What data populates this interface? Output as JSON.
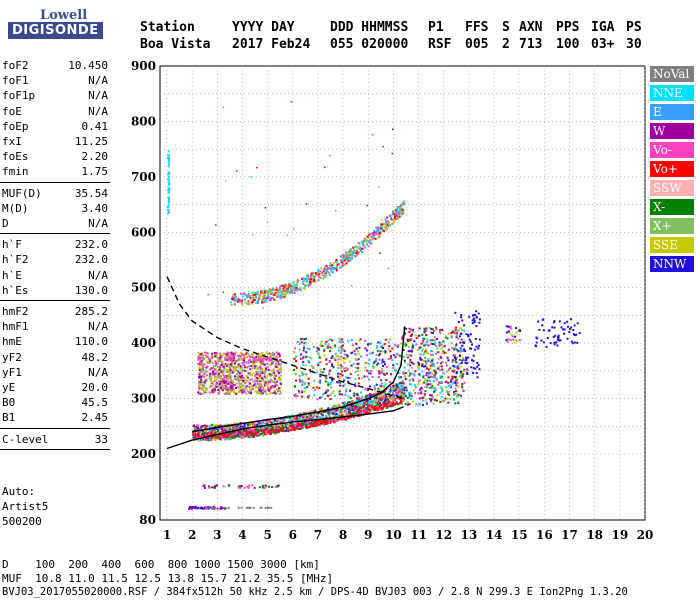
{
  "logo": {
    "top": "Lowell",
    "bottom": "DIGISONDE"
  },
  "header": {
    "labels": [
      "Station",
      "YYYY DAY",
      "DDD HHMMSS",
      "P1",
      "FFS",
      "S",
      "AXN",
      "PPS",
      "IGA",
      "PS"
    ],
    "values": [
      "Boa Vista",
      "2017 Feb24",
      "055 020000",
      "RSF",
      "005",
      "2",
      "713",
      "100",
      "03+",
      "30"
    ]
  },
  "params_group1": [
    {
      "label": "foF2",
      "value": "10.450"
    },
    {
      "label": "foF1",
      "value": "N/A"
    },
    {
      "label": "foF1p",
      "value": "N/A"
    },
    {
      "label": "foE",
      "value": "N/A"
    },
    {
      "label": "foEp",
      "value": "0.41"
    },
    {
      "label": "fxI",
      "value": "11.25"
    },
    {
      "label": "foEs",
      "value": "2.20"
    },
    {
      "label": "fmin",
      "value": "1.75"
    }
  ],
  "params_group2": [
    {
      "label": "MUF(D)",
      "value": "35.54"
    },
    {
      "label": "M(D)",
      "value": "3.40"
    },
    {
      "label": "D",
      "value": "N/A"
    }
  ],
  "params_group3": [
    {
      "label": "h`F",
      "value": "232.0"
    },
    {
      "label": "h`F2",
      "value": "232.0"
    },
    {
      "label": "h`E",
      "value": "N/A"
    },
    {
      "label": "h`Es",
      "value": "130.0"
    }
  ],
  "params_group4": [
    {
      "label": "hmF2",
      "value": "285.2"
    },
    {
      "label": "hmF1",
      "value": "N/A"
    },
    {
      "label": "hmE",
      "value": "110.0"
    },
    {
      "label": "yF2",
      "value": "48.2"
    },
    {
      "label": "yF1",
      "value": "N/A"
    },
    {
      "label": "yE",
      "value": "20.0"
    },
    {
      "label": "B0",
      "value": "45.5"
    },
    {
      "label": "B1",
      "value": "2.45"
    }
  ],
  "params_group5": [
    {
      "label": "C-level",
      "value": "33"
    }
  ],
  "autoscaler": {
    "line1": "Auto:",
    "line2": "Artist5",
    "line3": "500200"
  },
  "footer": {
    "line1": "D    100  200  400  600  800 1000 1500 3000 [km]",
    "line2": "MUF  10.8 11.0 11.5 12.5 13.8 15.7 21.2 35.5 [MHz]",
    "line3": "BVJ03_2017055020000.RSF / 384fx512h 50 kHz 2.5 km / DPS-4D BVJ03 003 / 2.8 N 299.3 E Ion2Png 1.3.20"
  },
  "legend": [
    {
      "label": "NoVal",
      "color": "#808080"
    },
    {
      "label": "NNE",
      "color": "#00e0ff"
    },
    {
      "label": "E",
      "color": "#3aa0ff"
    },
    {
      "label": "W",
      "color": "#a000a0"
    },
    {
      "label": "Vo-",
      "color": "#ff40c0"
    },
    {
      "label": "Vo+",
      "color": "#ff0000"
    },
    {
      "label": "SSW",
      "color": "#ffb0b0"
    },
    {
      "label": "X-",
      "color": "#008000"
    },
    {
      "label": "X+",
      "color": "#80c060"
    },
    {
      "label": "SSE",
      "color": "#c8c800"
    },
    {
      "label": "NNW",
      "color": "#2010e0"
    }
  ],
  "chart_data": {
    "type": "scatter",
    "title": "",
    "xlabel": "",
    "ylabel": "",
    "x_ticks": [
      "1",
      "2",
      "3",
      "4",
      "5",
      "6",
      "7",
      "8",
      "9",
      "10",
      "11",
      "12",
      "13",
      "14",
      "15",
      "16",
      "17",
      "18",
      "19",
      "20"
    ],
    "y_ticks": [
      "80",
      "200",
      "300",
      "400",
      "500",
      "600",
      "700",
      "800",
      "900"
    ],
    "xlim": [
      1,
      20
    ],
    "ylim": [
      80,
      900
    ],
    "traces": [
      {
        "name": "E-F1 profile lower",
        "x": [
          1,
          2,
          3,
          4,
          5,
          6,
          7,
          8,
          9,
          10,
          10.4
        ],
        "y": [
          210,
          225,
          235,
          245,
          252,
          258,
          262,
          267,
          272,
          278,
          285
        ]
      },
      {
        "name": "F2 profile",
        "x": [
          2,
          3,
          4,
          5,
          6,
          7,
          8,
          9,
          9.5,
          10,
          10.3,
          10.45
        ],
        "y": [
          240,
          248,
          255,
          262,
          268,
          276,
          285,
          300,
          310,
          330,
          360,
          430
        ]
      },
      {
        "name": "MUF curve",
        "x": [
          1,
          1.5,
          2,
          3,
          4,
          5,
          6,
          7,
          8,
          9,
          10,
          10.4
        ],
        "y": [
          520,
          470,
          440,
          410,
          390,
          375,
          360,
          345,
          330,
          318,
          305,
          300
        ]
      }
    ]
  }
}
